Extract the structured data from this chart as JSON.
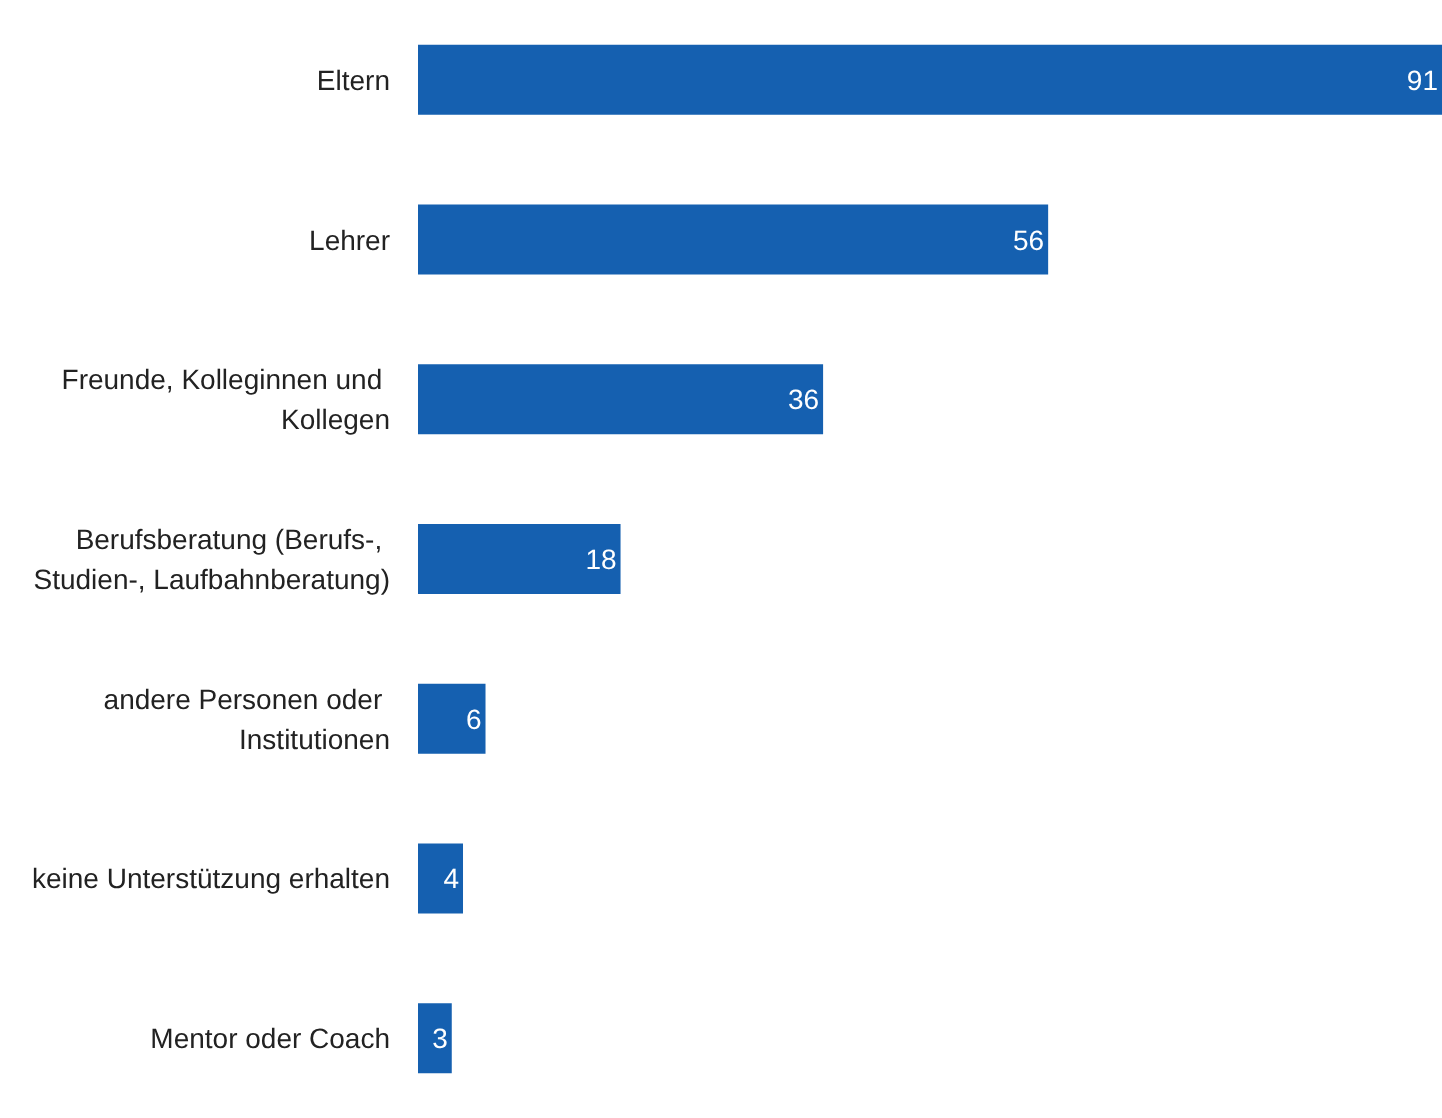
{
  "chart_data": {
    "type": "bar",
    "orientation": "horizontal",
    "categories": [
      "Eltern",
      "Lehrer",
      "Freunde, Kolleginnen und Kollegen",
      "Berufsberatung (Berufs-, Studien-, Laufbahnberatung)",
      "andere Personen oder Institutionen",
      "keine Unterstützung erhalten",
      "Mentor oder Coach"
    ],
    "values": [
      91,
      56,
      36,
      18,
      6,
      4,
      3
    ],
    "color": "#1560b0",
    "data_labels": true
  }
}
